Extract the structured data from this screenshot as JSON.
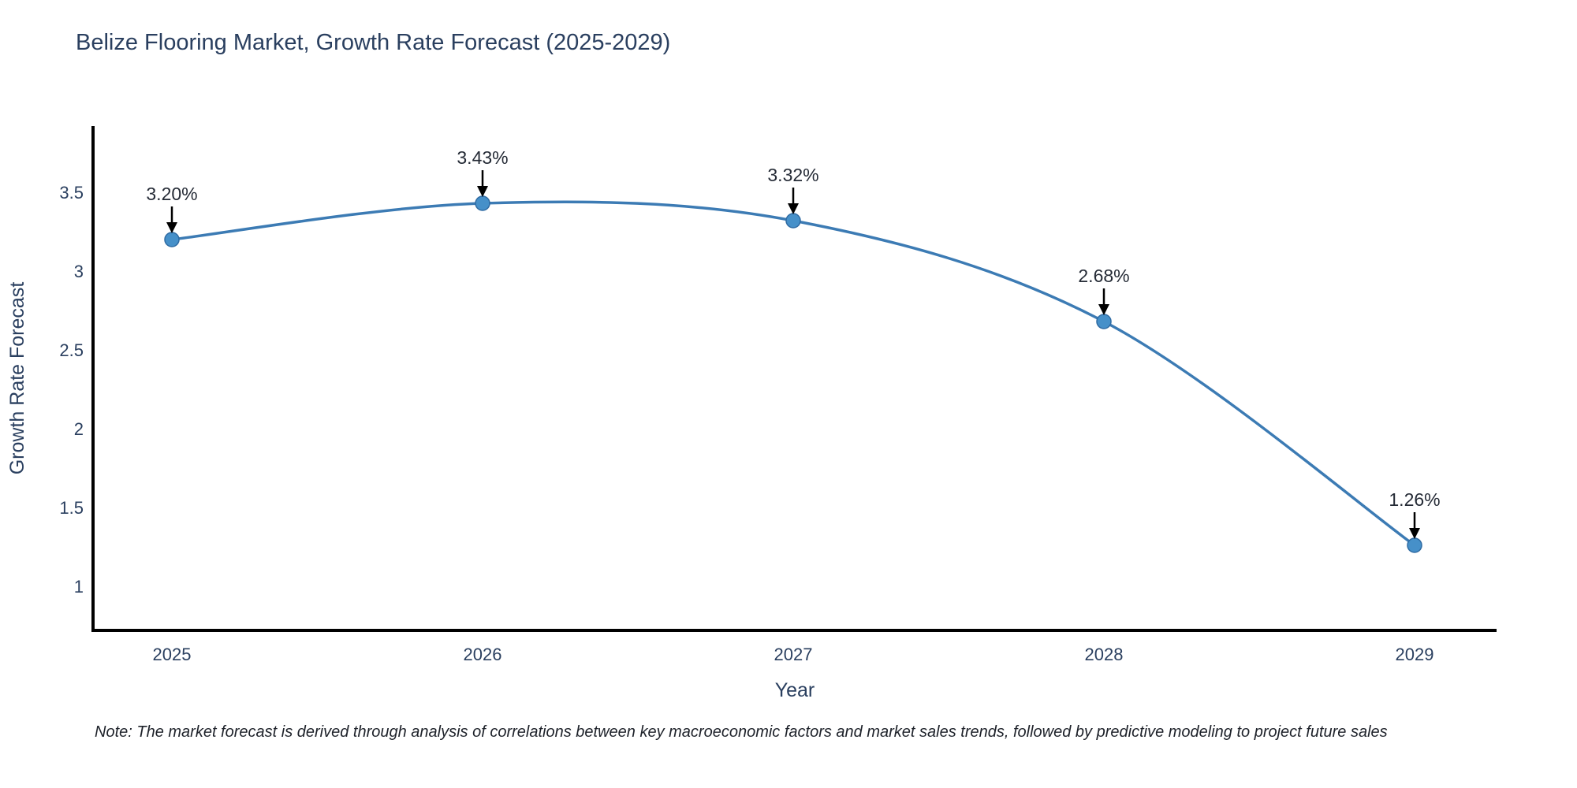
{
  "title": "Belize Flooring Market, Growth Rate Forecast (2025-2029)",
  "note": "Note: The market forecast is derived through analysis of correlations between key macroeconomic factors and market sales trends, followed by predictive modeling to project future sales",
  "chart_data": {
    "type": "line",
    "title": "Belize Flooring Market, Growth Rate Forecast (2025-2029)",
    "xlabel": "Year",
    "ylabel": "Growth Rate Forecast",
    "x": [
      2025,
      2026,
      2027,
      2028,
      2029
    ],
    "xtick_labels": [
      "2025",
      "2026",
      "2027",
      "2028",
      "2029"
    ],
    "values": [
      3.2,
      3.43,
      3.32,
      2.68,
      1.26
    ],
    "point_labels": [
      "3.20%",
      "3.43%",
      "3.32%",
      "2.68%",
      "1.26%"
    ],
    "yticks": [
      1,
      1.5,
      2,
      2.5,
      3,
      3.5
    ],
    "ytick_labels": [
      "1",
      "1.5",
      "2",
      "2.5",
      "3",
      "3.5"
    ],
    "ylim": [
      0.72,
      3.92
    ],
    "line_shape": "spline",
    "grid": false,
    "legend": false,
    "markers": true,
    "annotations_have_arrows": true,
    "colors": {
      "line": "#3c7bb4",
      "marker_fill": "#4690c9",
      "marker_edge": "#2f6ba3",
      "axis_line": "#000000",
      "text": "#2a3f5f",
      "annotation_text": "#252b36",
      "annotation_arrow": "#000000"
    }
  }
}
